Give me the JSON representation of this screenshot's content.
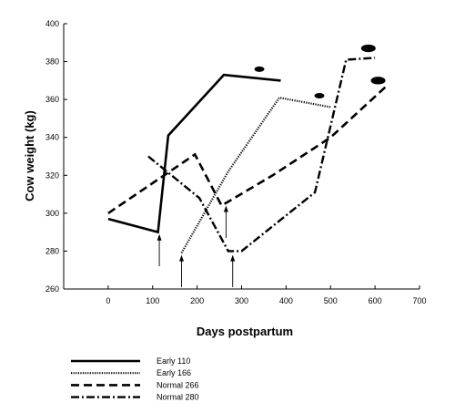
{
  "chart_data": {
    "type": "line",
    "xlabel": "Days postpartum",
    "ylabel": "Cow weight (kg)",
    "xlim": [
      -100,
      700
    ],
    "ylim": [
      260,
      400
    ],
    "xticks": [
      0,
      100,
      200,
      300,
      400,
      500,
      600,
      700
    ],
    "yticks": [
      260,
      280,
      300,
      320,
      340,
      360,
      380,
      400
    ],
    "grid": false,
    "legend_position": "bottom-left",
    "series": [
      {
        "name": "Early 110",
        "style": "solid",
        "points": [
          [
            0,
            297
          ],
          [
            112,
            290
          ],
          [
            135,
            341
          ],
          [
            260,
            373
          ],
          [
            388,
            370
          ]
        ]
      },
      {
        "name": "Early 166",
        "style": "dotted",
        "points": [
          [
            165,
            279
          ],
          [
            270,
            322
          ],
          [
            385,
            361
          ],
          [
            500,
            356
          ]
        ]
      },
      {
        "name": "Normal 266",
        "style": "dashed",
        "points": [
          [
            0,
            300
          ],
          [
            195,
            331
          ],
          [
            255,
            304
          ],
          [
            370,
            320
          ],
          [
            500,
            340
          ],
          [
            630,
            368
          ]
        ]
      },
      {
        "name": "Normal 280",
        "style": "dash-dot",
        "points": [
          [
            90,
            330
          ],
          [
            205,
            308
          ],
          [
            270,
            280
          ],
          [
            300,
            280
          ],
          [
            465,
            311
          ],
          [
            535,
            381
          ],
          [
            600,
            382
          ]
        ]
      }
    ],
    "annotations": {
      "arrows": [
        {
          "x": 115,
          "y_tip": 289,
          "y_tail": 272
        },
        {
          "x": 165,
          "y_tip": 278,
          "y_tail": 261
        },
        {
          "x": 265,
          "y_tip": 304,
          "y_tail": 287
        },
        {
          "x": 280,
          "y_tip": 278,
          "y_tail": 261
        }
      ],
      "markers": [
        {
          "x": 340,
          "y": 376,
          "size": "small"
        },
        {
          "x": 475,
          "y": 362,
          "size": "small"
        },
        {
          "x": 585,
          "y": 387,
          "size": "large"
        },
        {
          "x": 607,
          "y": 370,
          "size": "large"
        }
      ]
    }
  }
}
